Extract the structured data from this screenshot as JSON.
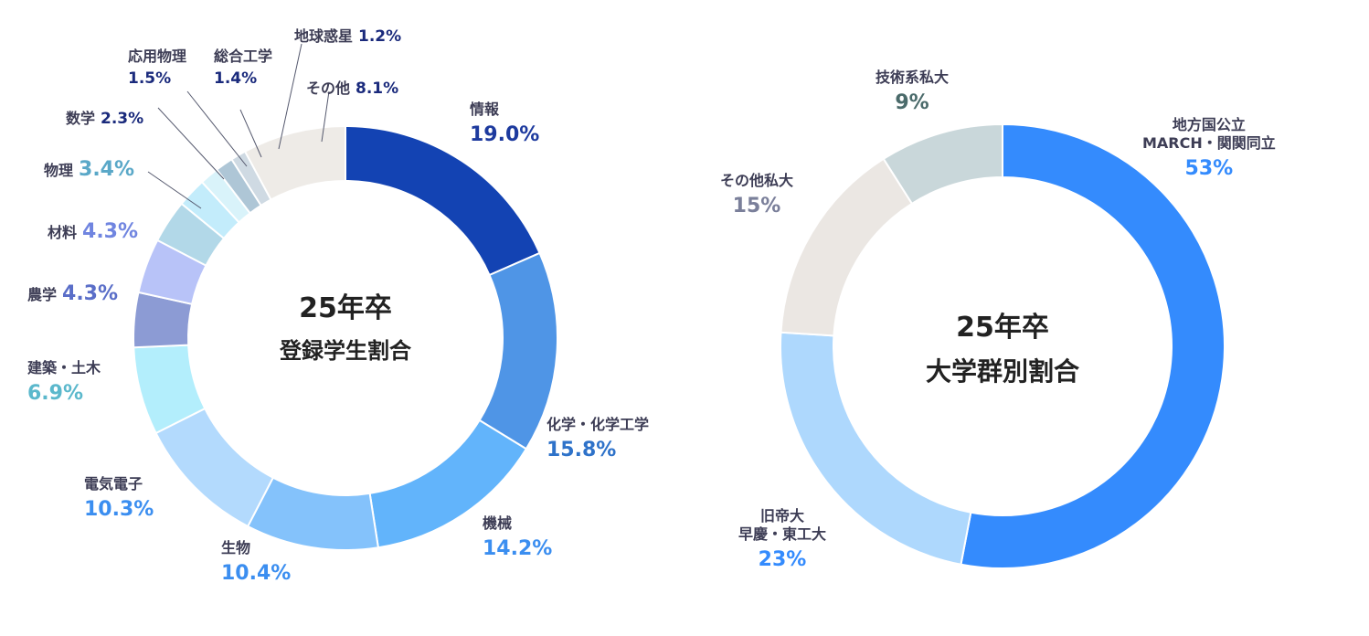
{
  "chart_data": [
    {
      "type": "pie",
      "donut": true,
      "title": "25年卒",
      "subtitle": "登録学生割合",
      "categories": [
        "情報",
        "化学・化学工学",
        "機械",
        "生物",
        "電気電子",
        "建築・土木",
        "農学",
        "材料",
        "物理",
        "数学",
        "応用物理",
        "総合工学",
        "地球惑星",
        "その他"
      ],
      "values": [
        19.0,
        15.8,
        14.2,
        10.4,
        10.3,
        6.9,
        4.3,
        4.3,
        3.4,
        2.3,
        1.5,
        1.4,
        1.2,
        8.1
      ],
      "value_labels": [
        "19.0%",
        "15.8%",
        "14.2%",
        "10.4%",
        "10.3%",
        "6.9%",
        "4.3%",
        "4.3%",
        "3.4%",
        "2.3%",
        "1.5%",
        "1.4%",
        "1.2%",
        "8.1%"
      ],
      "colors": [
        "#1343b3",
        "#4f95e6",
        "#62b4fb",
        "#84c2fb",
        "#b3dafd",
        "#b3eefc",
        "#8c9bd4",
        "#b8c3f8",
        "#b2d8e8",
        "#c3ecfb",
        "#d9f3fa",
        "#aec6d6",
        "#cfdae3",
        "#eeebe7"
      ],
      "label_colors": [
        "#1d3a9e",
        "#2e72c9",
        "#3b8ef0",
        "#3b8ef0",
        "#3b8ef0",
        "#5bb8cc",
        "#5a6ec8",
        "#7085e0",
        "#5aa8c8",
        "#1a2a7c",
        "#1a2a7c",
        "#1a2a7c",
        "#1a2a7c",
        "#1a2a7c"
      ]
    },
    {
      "type": "pie",
      "donut": true,
      "title": "25年卒",
      "subtitle": "大学群別割合",
      "categories": [
        "地方国公立\nMARCH・関関同立",
        "旧帝大\n早慶・東工大",
        "その他私大",
        "技術系私大"
      ],
      "values": [
        53,
        23,
        15,
        9
      ],
      "value_labels": [
        "53%",
        "23%",
        "15%",
        "9%"
      ],
      "colors": [
        "#348bfd",
        "#aed8fd",
        "#ebe7e3",
        "#c9d7da"
      ],
      "label_colors": [
        "#348bfd",
        "#348bfd",
        "#7a7f9a",
        "#4a6a6a"
      ]
    }
  ]
}
